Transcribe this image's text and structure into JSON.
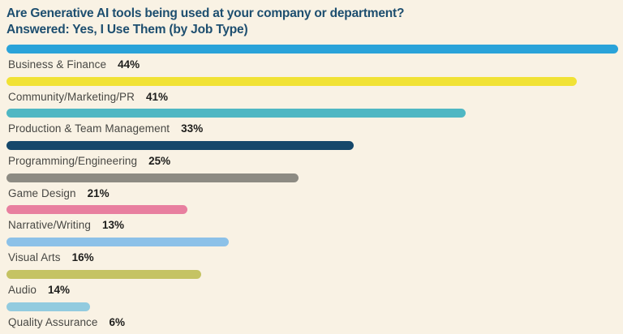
{
  "title": {
    "line1": "Are Generative AI tools being used at your company or department?",
    "line2": "Answered: Yes, I Use Them (by Job Type)"
  },
  "colors": {
    "background": "#f9f2e4",
    "title_text": "#1d4e6f",
    "category_text": "#474743",
    "value_text": "#1d1d1b"
  },
  "chart_data": {
    "type": "bar",
    "orientation": "horizontal",
    "title": "Are Generative AI tools being used at your company or department?",
    "subtitle": "Answered: Yes, I Use Them (by Job Type)",
    "unit": "%",
    "xlim": [
      0,
      44
    ],
    "grid": false,
    "legend": false,
    "categories": [
      "Business & Finance",
      "Community/Marketing/PR",
      "Production & Team Management",
      "Programming/Engineering",
      "Game Design",
      "Narrative/Writing",
      "Visual Arts",
      "Audio",
      "Quality Assurance"
    ],
    "values": [
      44,
      41,
      33,
      25,
      21,
      13,
      16,
      14,
      6
    ],
    "value_labels": [
      "44%",
      "41%",
      "33%",
      "25%",
      "21%",
      "13%",
      "16%",
      "14%",
      "6%"
    ],
    "bar_colors": [
      "#2aa3d9",
      "#f1e235",
      "#4fb7c3",
      "#16486b",
      "#8d8b83",
      "#e87f9f",
      "#8cc1e8",
      "#c5c363",
      "#92cbdf"
    ]
  }
}
